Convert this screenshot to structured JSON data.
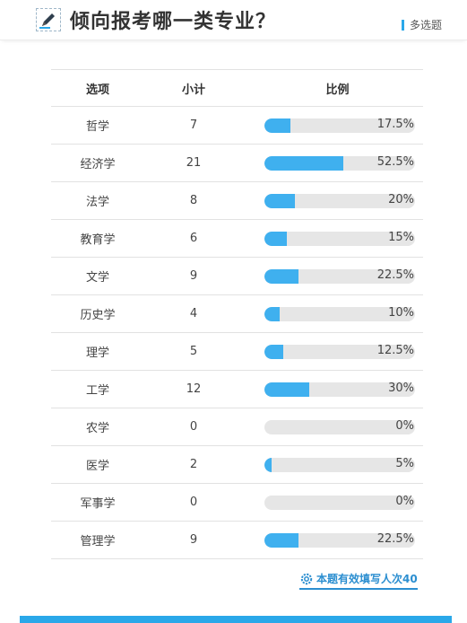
{
  "header": {
    "title": "倾向报考哪一类专业？",
    "question_type": "多选题",
    "icon": "pencil-icon"
  },
  "table": {
    "columns": [
      "选项",
      "小计",
      "比例"
    ],
    "rows": [
      {
        "option": "哲学",
        "count": "7",
        "percent": "17.5%",
        "ratio": 0.175
      },
      {
        "option": "经济学",
        "count": "21",
        "percent": "52.5%",
        "ratio": 0.525
      },
      {
        "option": "法学",
        "count": "8",
        "percent": "20%",
        "ratio": 0.2
      },
      {
        "option": "教育学",
        "count": "6",
        "percent": "15%",
        "ratio": 0.15
      },
      {
        "option": "文学",
        "count": "9",
        "percent": "22.5%",
        "ratio": 0.225
      },
      {
        "option": "历史学",
        "count": "4",
        "percent": "10%",
        "ratio": 0.1
      },
      {
        "option": "理学",
        "count": "5",
        "percent": "12.5%",
        "ratio": 0.125
      },
      {
        "option": "工学",
        "count": "12",
        "percent": "30%",
        "ratio": 0.3
      },
      {
        "option": "农学",
        "count": "0",
        "percent": "0%",
        "ratio": 0
      },
      {
        "option": "医学",
        "count": "2",
        "percent": "5%",
        "ratio": 0.05
      },
      {
        "option": "军事学",
        "count": "0",
        "percent": "0%",
        "ratio": 0
      },
      {
        "option": "管理学",
        "count": "9",
        "percent": "22.5%",
        "ratio": 0.225
      }
    ]
  },
  "footer": {
    "valid_count_label": "本题有效填写人次40",
    "icon": "gear-icon"
  },
  "colors": {
    "accent": "#3fb0ef",
    "track": "#e6e6e6",
    "link": "#2b8ed0"
  }
}
